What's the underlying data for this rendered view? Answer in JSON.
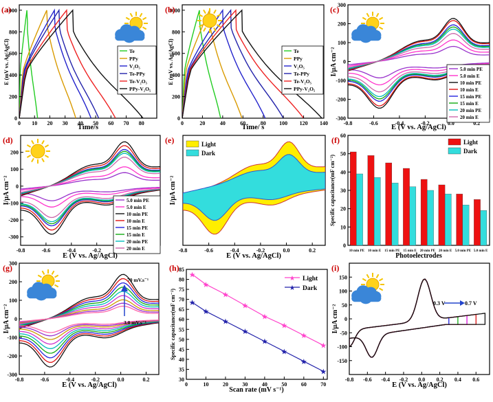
{
  "panels": [
    {
      "id": "a",
      "label": "(a)",
      "type": "line",
      "weather": "cloud-sun",
      "xlabel": "Time/s",
      "ylabel": "E (mV vs. Ag/AgCl)",
      "xlim": [
        0,
        90
      ],
      "ylim": [
        0,
        1050
      ],
      "xticks": [
        0,
        10,
        20,
        30,
        40,
        50,
        60,
        70,
        80
      ],
      "yticks": [
        0,
        200,
        400,
        600,
        800,
        1000
      ],
      "legend": [
        "Te",
        "PPy",
        "V2O5",
        "Te-PPy",
        "Te-V2O5",
        "PPy-V2O5"
      ],
      "colors": [
        "#22cc22",
        "#d99a00",
        "#2222cc",
        "#2222aa",
        "#ee2222",
        "#111111"
      ],
      "gcd": [
        [
          5,
          12
        ],
        [
          18,
          37
        ],
        [
          23,
          47
        ],
        [
          26,
          52
        ],
        [
          31,
          63
        ],
        [
          35,
          81
        ]
      ]
    },
    {
      "id": "b",
      "label": "(b)",
      "type": "line",
      "weather": "sun",
      "xlabel": "Time/s",
      "ylabel": "E (mV vs. Ag/AgCl)",
      "xlim": [
        0,
        140
      ],
      "ylim": [
        0,
        1050
      ],
      "xticks": [
        0,
        20,
        40,
        60,
        80,
        100,
        120,
        140
      ],
      "yticks": [
        0,
        200,
        400,
        600,
        800,
        1000
      ],
      "legend": [
        "Te",
        "PPy",
        "V2O5",
        "Te-PPy",
        "Te-V2O5",
        "PPy-V2O5"
      ],
      "colors": [
        "#22cc22",
        "#d99a00",
        "#2222cc",
        "#2222aa",
        "#ee2222",
        "#111111"
      ],
      "gcd": [
        [
          17,
          38
        ],
        [
          27,
          59
        ],
        [
          40,
          82
        ],
        [
          48,
          100
        ],
        [
          53,
          120
        ],
        [
          59,
          138
        ]
      ]
    },
    {
      "id": "c",
      "label": "(c)",
      "type": "cv",
      "weather": "cloud-sun",
      "xlabel": "E (V vs. Ag/AgCl)",
      "ylabel": "I/µA cm-2",
      "xlim": [
        -0.8,
        0.3
      ],
      "ylim": [
        -300,
        300
      ],
      "xticks": [
        -0.8,
        -0.6,
        -0.4,
        -0.2,
        0.0,
        0.2
      ],
      "yticks": [
        -300,
        -200,
        -100,
        0,
        100,
        200,
        300
      ],
      "legend": [
        "5.0 min PE",
        "5.0 min E",
        "10 min PE",
        "10 min E",
        "15 min PE",
        "15 min E",
        "20 min PE",
        "20 min E"
      ],
      "colors": [
        "#9933cc",
        "#ff33cc",
        "#111111",
        "#dd1111",
        "#2222dd",
        "#11aa11",
        "#00bbbb",
        "#cc66aa"
      ],
      "scales": [
        0.35,
        0.5,
        1.0,
        0.95,
        0.85,
        0.8,
        0.75,
        0.65
      ]
    },
    {
      "id": "d",
      "label": "(d)",
      "type": "cv",
      "weather": "sun",
      "xlabel": "E (V vs. Ag/AgCl)",
      "ylabel": "I/µA cm-2",
      "xlim": [
        -0.8,
        0.3
      ],
      "ylim": [
        -350,
        300
      ],
      "xticks": [
        -0.8,
        -0.6,
        -0.4,
        -0.2,
        0.0,
        0.2
      ],
      "yticks": [
        -300,
        -200,
        -100,
        0,
        100,
        200
      ],
      "legend": [
        "5.0 min PE",
        "5.0 min E",
        "10 min PE",
        "10 min E",
        "15 min PE",
        "15 min E",
        "20 min PE",
        "20 min E"
      ],
      "colors": [
        "#9933cc",
        "#ff33cc",
        "#111111",
        "#dd1111",
        "#2222dd",
        "#11aa11",
        "#00bbbb",
        "#cc66aa"
      ],
      "scales": [
        0.35,
        0.5,
        1.15,
        1.05,
        0.95,
        0.9,
        0.85,
        0.75
      ]
    },
    {
      "id": "e",
      "label": "(e)",
      "type": "cv-fill",
      "xlabel": "E (V vs. Ag/AgCl)",
      "ylabel": "I/µA cm-2",
      "xlim": [
        -0.8,
        0.3
      ],
      "ylim": [
        -350,
        300
      ],
      "xticks": [
        -0.8,
        -0.6,
        -0.4,
        -0.2,
        0.0,
        0.2
      ],
      "yticks": [],
      "legend": [
        "Light",
        "Dark"
      ],
      "colors": [
        "#ffee00",
        "#33dddd"
      ],
      "scales": [
        1.15,
        0.82
      ]
    },
    {
      "id": "f",
      "label": "(f)",
      "type": "bar",
      "xlabel": "Photoelectrodes",
      "ylabel": "Specific capacitance(mF cm-2)",
      "ylim": [
        0,
        60
      ],
      "yticks": [
        0,
        10,
        20,
        30,
        40,
        50,
        60
      ],
      "categories": [
        "10 min PE",
        "10 min E",
        "15 min PE",
        "15 min E",
        "20 min PE",
        "20 min E",
        "5.0 min PE",
        "5.0 min E"
      ],
      "series": [
        {
          "name": "Light",
          "color": "#ee1111",
          "values": [
            51,
            49,
            45,
            42,
            36,
            33,
            28,
            25
          ]
        },
        {
          "name": "Dark",
          "color": "#33dddd",
          "values": [
            39,
            37,
            34,
            32,
            30,
            28,
            22,
            19
          ]
        }
      ]
    },
    {
      "id": "g",
      "label": "(g)",
      "type": "cv",
      "weather": "cloud-sun",
      "xlabel": "E (V vs. Ag/AgCl)",
      "ylabel": "I/µA cm-2",
      "xlim": [
        -0.8,
        0.3
      ],
      "ylim": [
        -300,
        300
      ],
      "xticks": [
        -0.8,
        -0.6,
        -0.4,
        -0.2,
        0.0,
        0.2
      ],
      "yticks": [
        -300,
        -200,
        -100,
        0,
        100,
        200,
        300
      ],
      "legend": [],
      "colors": [
        "#111111",
        "#dd1111",
        "#2222dd",
        "#11aa11",
        "#00bbbb",
        "#cc33cc",
        "#cc9900",
        "#9933cc",
        "#ff66aa"
      ],
      "scales": [
        1.05,
        0.95,
        0.85,
        0.75,
        0.65,
        0.55,
        0.45,
        0.37,
        0.3
      ],
      "annotations": [
        "70 mV.s-1",
        "3.0 mV.s-1"
      ]
    },
    {
      "id": "h",
      "label": "(h)",
      "type": "line",
      "xlabel": "Scan rate (mV s-1)",
      "ylabel": "Specific capacitance(mF cm-2)",
      "xlim": [
        0,
        72
      ],
      "ylim": [
        30,
        85
      ],
      "xticks": [
        0,
        10,
        20,
        30,
        40,
        50,
        60,
        70
      ],
      "yticks": [
        30,
        35,
        40,
        45,
        50,
        55,
        60,
        65,
        70,
        75,
        80,
        85
      ],
      "x": [
        3,
        10,
        20,
        30,
        40,
        50,
        60,
        70
      ],
      "series": [
        {
          "name": "Light",
          "color": "#ff44cc",
          "values": [
            82.5,
            77.5,
            72.5,
            67,
            61.5,
            57,
            52,
            47
          ]
        },
        {
          "name": "Dark",
          "color": "#2222aa",
          "values": [
            68.5,
            64,
            59,
            54,
            49,
            44,
            39,
            34
          ]
        }
      ]
    },
    {
      "id": "i",
      "label": "(i)",
      "type": "cv-window",
      "weather": "cloud-sun",
      "xlabel": "E (V vs. Ag/AgCl)",
      "ylabel": "I/µA cm-2",
      "xlim": [
        -0.8,
        0.75
      ],
      "ylim": [
        -200,
        200
      ],
      "xticks": [
        -0.8,
        -0.6,
        -0.4,
        -0.2,
        0.0,
        0.2,
        0.4,
        0.6
      ],
      "yticks": [
        -150,
        -100,
        -50,
        0,
        50,
        100,
        150
      ],
      "windows": [
        0.3,
        0.4,
        0.5,
        0.6,
        0.7
      ],
      "colors": [
        "#2222dd",
        "#11aa11",
        "#dd11dd",
        "#dd1111",
        "#111111"
      ],
      "annotations": [
        "0.3 V",
        "0.7 V"
      ]
    }
  ],
  "texts": {
    "a_label": "(a)",
    "b_label": "(b)",
    "c_label": "(c)",
    "d_label": "(d)",
    "e_label": "(e)",
    "f_label": "(f)",
    "g_label": "(g)",
    "h_label": "(h)",
    "i_label": "(i)",
    "time": "Time/ s",
    "time_a": "Time/s",
    "e_axis": "E (V vs. Ag/AgCl)",
    "current": "I/µA cm⁻²",
    "gcd_y": "E (mV vs. Ag/AgCl)",
    "photo": "Photoelectrodes",
    "scan": "Scan rate (mV s⁻¹)",
    "spec_cap": "Specific capacitance(mF cm⁻²)",
    "ann_70": "70 mV.s⁻¹",
    "ann_3": "3.0 mV.s⁻¹",
    "ann_03": "0.3 V",
    "ann_07": "0.7 V"
  }
}
